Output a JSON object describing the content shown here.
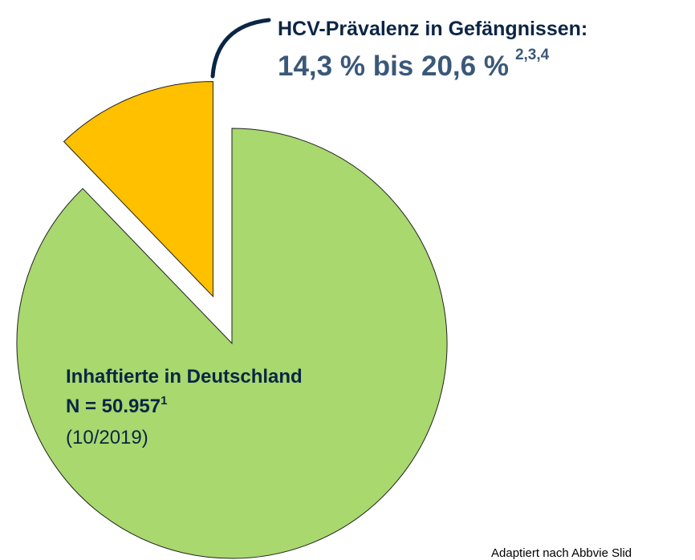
{
  "chart_data": {
    "type": "pie",
    "values": [
      87.8,
      12.2
    ],
    "colors": [
      "#a8d86e",
      "#ffc000"
    ],
    "explode": [
      false,
      true
    ],
    "annotation": {
      "heading": "HCV-Prävalenz in Gefängnissen:",
      "range": "14,3 % bis 20,6 %",
      "refs": "2,3,4"
    },
    "label": {
      "title": "Inhaftierte in Deutschland",
      "count": "N = 50.957",
      "count_ref": "1",
      "date": "(10/2019)"
    },
    "source": "Adaptiert nach Abbvie Slid"
  }
}
